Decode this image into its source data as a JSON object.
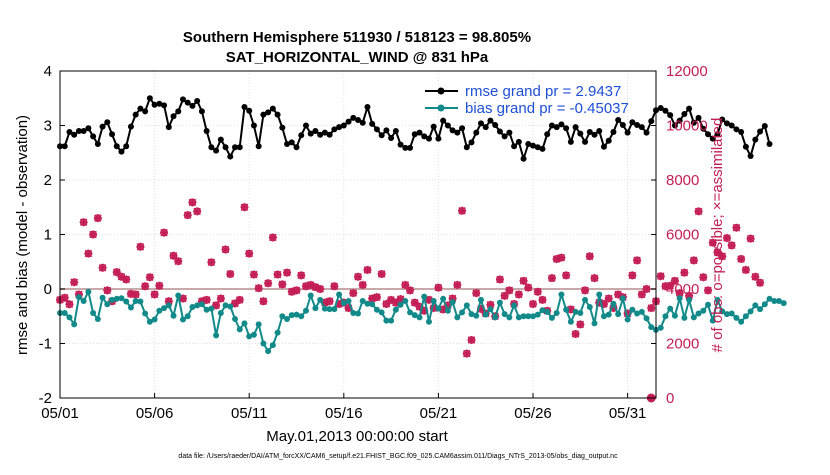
{
  "colors": {
    "rmse": "#000000",
    "bias": "#138a8a",
    "obs": "#c41e56",
    "legend_text": "#1f4fd6",
    "zero_line": "#c8a8a8"
  },
  "chart_data": {
    "type": "line",
    "title": "Southern Hemisphere 511930 / 518123 = 98.805%",
    "subtitle": "SAT_HORIZONTAL_WIND @ 831 hPa",
    "xlabel": "May.01,2013 00:00:00 start",
    "ylabel": "rmse and bias (model - observation)",
    "y2label": "# of obs: o=possible; ×=assimilated",
    "footer": "data file: /Users/raeder/DAI/ATM_forcXX/CAM6_setup/f.e21.FHIST_BGC.f09_025.CAM6assim.011/Diags_NTrS_2013-05/obs_diag_output.nc",
    "xlim": [
      0,
      31.5
    ],
    "ylim": [
      -2,
      4
    ],
    "y2lim": [
      0,
      12000
    ],
    "x_ticks": [
      {
        "value": 0,
        "label": "05/01"
      },
      {
        "value": 5,
        "label": "05/06"
      },
      {
        "value": 10,
        "label": "05/11"
      },
      {
        "value": 15,
        "label": "05/16"
      },
      {
        "value": 20,
        "label": "05/21"
      },
      {
        "value": 25,
        "label": "05/26"
      },
      {
        "value": 30,
        "label": "05/31"
      }
    ],
    "y_ticks": [
      {
        "value": -2,
        "label": "-2"
      },
      {
        "value": -1,
        "label": "-1"
      },
      {
        "value": 0,
        "label": "0"
      },
      {
        "value": 1,
        "label": "1"
      },
      {
        "value": 2,
        "label": "2"
      },
      {
        "value": 3,
        "label": "3"
      },
      {
        "value": 4,
        "label": "4"
      }
    ],
    "y2_ticks": [
      {
        "value": 0,
        "label": "0"
      },
      {
        "value": 2000,
        "label": "2000"
      },
      {
        "value": 4000,
        "label": "4000"
      },
      {
        "value": 6000,
        "label": "6000"
      },
      {
        "value": 8000,
        "label": "8000"
      },
      {
        "value": 10000,
        "label": "10000"
      },
      {
        "value": 12000,
        "label": "12000"
      }
    ],
    "legend": [
      {
        "label": "rmse grand pr = 2.9437",
        "series": "rmse"
      },
      {
        "label": "bias grand pr = -0.45037",
        "series": "bias"
      }
    ],
    "x_step_days": 0.25,
    "series": [
      {
        "name": "rmse",
        "axis": "left",
        "values": [
          2.62,
          2.62,
          2.88,
          2.83,
          2.9,
          2.9,
          2.95,
          2.8,
          2.66,
          2.98,
          3.06,
          2.84,
          2.62,
          2.52,
          2.62,
          2.98,
          3.2,
          3.31,
          3.26,
          3.5,
          3.38,
          3.4,
          3.37,
          2.97,
          3.17,
          3.26,
          3.48,
          3.42,
          3.36,
          3.45,
          3.26,
          2.9,
          2.6,
          2.54,
          2.74,
          2.6,
          2.43,
          2.6,
          2.6,
          3.34,
          3.27,
          3.0,
          2.62,
          3.2,
          3.24,
          3.31,
          3.2,
          2.96,
          2.66,
          2.69,
          2.6,
          2.82,
          3.0,
          2.85,
          2.9,
          2.83,
          2.87,
          2.83,
          2.93,
          2.97,
          3.0,
          3.07,
          3.14,
          3.1,
          3.05,
          3.34,
          3.03,
          2.93,
          2.82,
          2.91,
          2.77,
          2.9,
          2.65,
          2.59,
          2.59,
          2.84,
          2.87,
          2.8,
          2.76,
          2.98,
          2.76,
          3.09,
          3.0,
          2.91,
          2.87,
          2.95,
          2.6,
          2.69,
          2.87,
          3.04,
          2.97,
          3.09,
          3.01,
          2.89,
          2.8,
          2.87,
          2.62,
          2.7,
          2.39,
          2.66,
          2.63,
          2.6,
          2.57,
          2.84,
          3.0,
          2.97,
          3.02,
          2.95,
          2.7,
          2.97,
          2.85,
          2.7,
          2.88,
          2.83,
          2.9,
          2.61,
          2.72,
          2.88,
          3.1,
          3.01,
          2.87,
          3.06,
          3.01,
          2.97,
          2.87,
          3.08,
          3.28,
          3.32,
          3.27,
          3.19,
          3.0,
          3.09,
          3.21,
          3.31,
          3.05,
          3.14,
          2.94,
          2.84,
          2.76,
          2.84,
          3.11,
          3.04,
          3.0,
          2.93,
          2.88,
          2.61,
          2.44,
          2.74,
          2.89,
          2.99,
          2.66
        ]
      },
      {
        "name": "bias",
        "axis": "left",
        "values": [
          -0.44,
          -0.44,
          -0.52,
          -0.65,
          -0.15,
          -0.22,
          -0.05,
          -0.44,
          -0.55,
          -0.16,
          -0.28,
          -0.2,
          -0.18,
          -0.17,
          -0.23,
          -0.34,
          -0.22,
          -0.23,
          -0.45,
          -0.6,
          -0.56,
          -0.4,
          -0.35,
          -0.3,
          -0.49,
          -0.12,
          -0.56,
          -0.5,
          -0.33,
          -0.3,
          -0.28,
          -0.38,
          -0.36,
          -0.85,
          -0.44,
          -0.3,
          -0.32,
          -0.55,
          -0.74,
          -0.63,
          -0.87,
          -0.84,
          -0.65,
          -1.0,
          -1.14,
          -1.03,
          -0.8,
          -0.5,
          -0.55,
          -0.48,
          -0.47,
          -0.5,
          -0.4,
          -0.12,
          -0.35,
          -0.2,
          -0.36,
          -0.37,
          -0.37,
          -0.1,
          -0.26,
          -0.22,
          -0.44,
          -0.45,
          -0.22,
          -0.27,
          -0.28,
          -0.38,
          -0.43,
          -0.58,
          -0.58,
          -0.38,
          -0.29,
          -0.22,
          -0.43,
          -0.48,
          -0.52,
          -0.14,
          -0.6,
          -0.22,
          -0.36,
          -0.18,
          -0.4,
          -0.24,
          -0.52,
          -0.43,
          -0.3,
          -0.46,
          -0.49,
          -0.2,
          -0.47,
          -0.37,
          -0.52,
          -0.25,
          -0.46,
          -0.52,
          -0.3,
          -0.52,
          -0.5,
          -0.5,
          -0.5,
          -0.47,
          -0.39,
          -0.42,
          -0.53,
          -0.44,
          -0.1,
          -0.38,
          -0.6,
          -0.42,
          -0.44,
          -0.2,
          -0.33,
          -0.63,
          -0.1,
          -0.5,
          -0.47,
          -0.27,
          -0.46,
          -0.17,
          -0.56,
          -0.38,
          -0.45,
          -0.42,
          -0.54,
          -0.7,
          -0.75,
          -0.71,
          -0.5,
          -0.36,
          -0.49,
          -0.17,
          -0.53,
          -0.2,
          -0.52,
          -0.45,
          -0.4,
          -0.29,
          -0.58,
          -0.2,
          -0.41,
          -0.46,
          -0.45,
          -0.53,
          -0.6,
          -0.5,
          -0.41,
          -0.3,
          -0.37,
          -0.28,
          -0.18,
          -0.22,
          -0.22,
          -0.26
        ]
      },
      {
        "name": "obs_possible",
        "axis": "right",
        "values": [
          3600,
          3680,
          3440,
          4250,
          3800,
          6450,
          5300,
          6000,
          6600,
          4780,
          3950,
          3550,
          4620,
          4450,
          4350,
          3820,
          3800,
          5550,
          4100,
          4430,
          3800,
          4120,
          6070,
          3550,
          5220,
          5020,
          3650,
          6710,
          7180,
          6850,
          3550,
          3600,
          4980,
          3400,
          3650,
          5450,
          4550,
          3470,
          3600,
          7000,
          5300,
          4530,
          4030,
          3550,
          4210,
          5890,
          4530,
          4170,
          4600,
          3900,
          3950,
          4500,
          4100,
          4150,
          4070,
          4000,
          3500,
          3550,
          4100,
          3450,
          3500,
          3300,
          3850,
          4450,
          4150,
          4700,
          3650,
          3700,
          4550,
          3450,
          3600,
          3500,
          3630,
          4150,
          3950,
          3500,
          3350,
          3200,
          3600,
          3300,
          4050,
          3250,
          3400,
          3650,
          4150,
          6870,
          1630,
          2130,
          3850,
          3270,
          3100,
          3420,
          3000,
          4350,
          3750,
          3950,
          3450,
          3800,
          4300,
          4050,
          3450,
          3900,
          3600,
          3200,
          4400,
          5100,
          5150,
          4500,
          3250,
          2350,
          2700,
          3950,
          5200,
          4400,
          3500,
          3450,
          3650,
          3300,
          3800,
          3700,
          3100,
          4500,
          5050,
          3800,
          4000,
          3300,
          3550,
          4470,
          4100,
          4120,
          4300,
          3850,
          4600,
          3750,
          5050,
          6850,
          4430,
          3950,
          5700,
          5350,
          5200,
          5870,
          5600,
          6250,
          5100,
          4700,
          5850,
          4450,
          4230
        ]
      },
      {
        "name": "obs_assimilated",
        "axis": "right",
        "values": [
          3600,
          3680,
          3440,
          4250,
          3800,
          6450,
          5300,
          6000,
          6600,
          4780,
          3950,
          3550,
          4620,
          4450,
          4350,
          3820,
          3800,
          5550,
          4100,
          4430,
          3800,
          4120,
          6070,
          3550,
          5220,
          5020,
          3650,
          6710,
          7180,
          6850,
          3550,
          3600,
          4980,
          3400,
          3650,
          5450,
          4550,
          3470,
          3600,
          7000,
          5300,
          4530,
          4030,
          3550,
          4210,
          5890,
          4530,
          4170,
          4600,
          3900,
          3950,
          4500,
          4100,
          4150,
          4070,
          4000,
          3500,
          3550,
          4100,
          3450,
          3500,
          3300,
          3850,
          4450,
          4150,
          4700,
          3650,
          3700,
          4550,
          3450,
          3600,
          3500,
          3630,
          4150,
          3950,
          3500,
          3350,
          3200,
          3600,
          3300,
          4050,
          3250,
          3400,
          3650,
          4150,
          6870,
          1630,
          2130,
          3850,
          3270,
          3100,
          3420,
          3000,
          4350,
          3750,
          3950,
          3450,
          3800,
          4300,
          4050,
          3450,
          3900,
          3600,
          3200,
          4400,
          5100,
          5150,
          4500,
          3250,
          2350,
          2700,
          3950,
          5200,
          4400,
          3500,
          3450,
          3650,
          3300,
          3800,
          3700,
          3100,
          4500,
          5050,
          3800,
          4000,
          3300,
          3550,
          4470,
          4100,
          4120,
          4300,
          3850,
          4600,
          3750,
          5050,
          6850,
          4430,
          3950,
          5700,
          5350,
          5200,
          5870,
          5600,
          6250,
          5100,
          4700,
          5850,
          4450,
          4230
        ]
      }
    ],
    "final_obs_marker": {
      "x": 31.25,
      "value": 0
    }
  }
}
